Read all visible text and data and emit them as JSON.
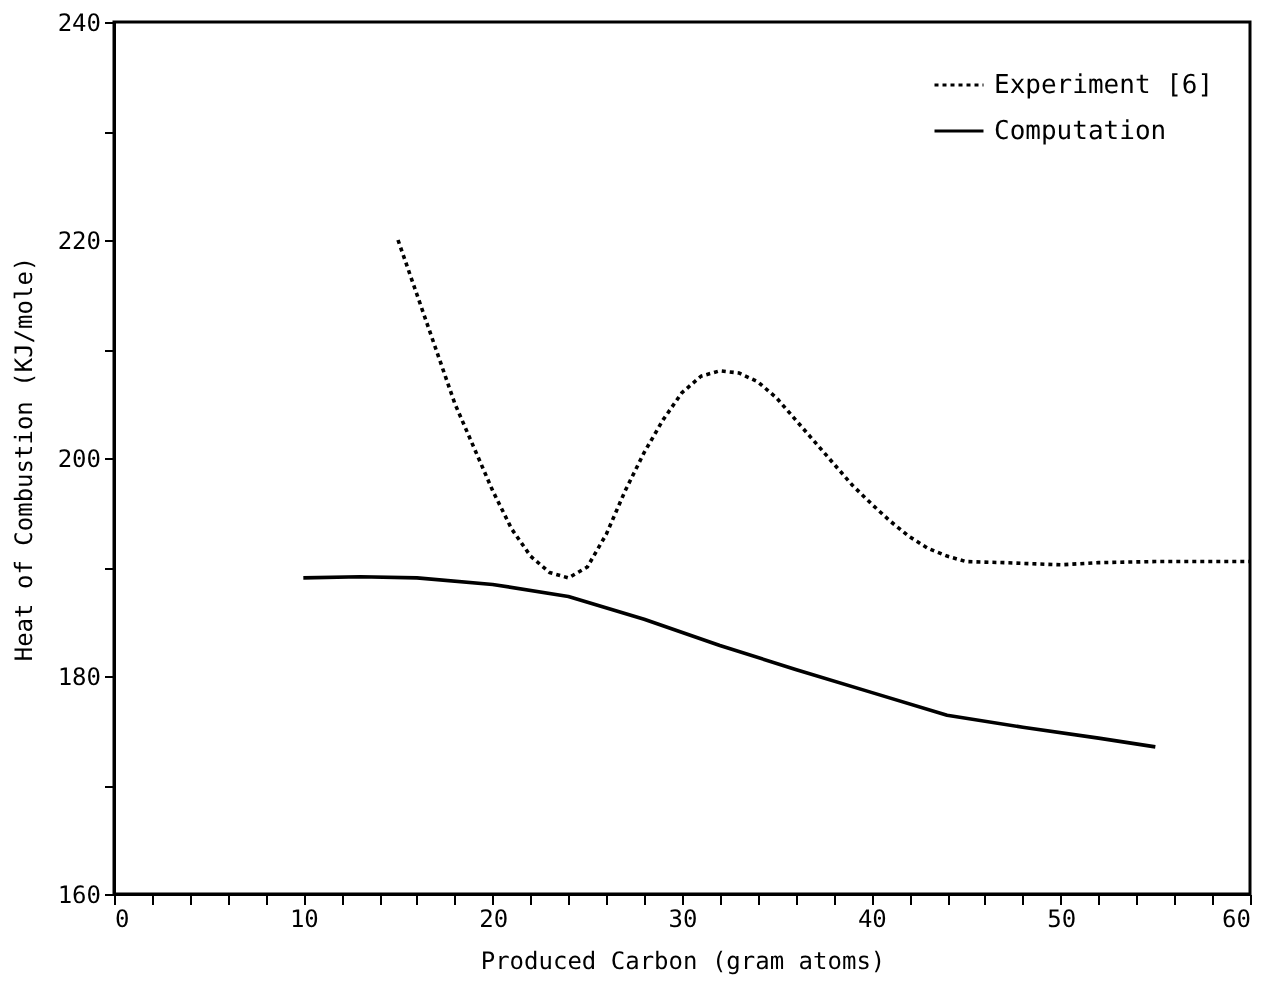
{
  "chart_data": {
    "type": "line",
    "xlabel": "Produced Carbon (gram atoms)",
    "ylabel": "Heat of Combustion (KJ/mole)",
    "xlim": [
      0,
      60
    ],
    "ylim": [
      160,
      240
    ],
    "xticks": [
      0,
      {
        "value": 2,
        "label": null
      },
      {
        "value": 4,
        "label": null
      },
      {
        "value": 6,
        "label": null
      },
      {
        "value": 8,
        "label": null
      },
      10,
      {
        "value": 12,
        "label": null
      },
      {
        "value": 14,
        "label": null
      },
      {
        "value": 16,
        "label": null
      },
      {
        "value": 18,
        "label": null
      },
      20,
      {
        "value": 22,
        "label": null
      },
      {
        "value": 24,
        "label": null
      },
      {
        "value": 26,
        "label": null
      },
      {
        "value": 28,
        "label": null
      },
      30,
      {
        "value": 32,
        "label": null
      },
      {
        "value": 34,
        "label": null
      },
      {
        "value": 36,
        "label": null
      },
      {
        "value": 38,
        "label": null
      },
      40,
      {
        "value": 42,
        "label": null
      },
      {
        "value": 44,
        "label": null
      },
      {
        "value": 46,
        "label": null
      },
      {
        "value": 48,
        "label": null
      },
      50,
      {
        "value": 52,
        "label": null
      },
      {
        "value": 54,
        "label": null
      },
      {
        "value": 56,
        "label": null
      },
      {
        "value": 58,
        "label": null
      },
      60
    ],
    "yticks": [
      160,
      {
        "value": 170,
        "label": null
      },
      180,
      {
        "value": 190,
        "label": null
      },
      200,
      {
        "value": 210,
        "label": null
      },
      220,
      {
        "value": 230,
        "label": null
      },
      240
    ],
    "grid": false,
    "legend": "top right",
    "marker": "none",
    "series": [
      {
        "name": "Experiment [6]",
        "color": "#000000",
        "line_style": "dotted",
        "x": [
          15,
          16,
          17,
          18,
          19,
          20,
          21,
          22,
          23,
          24,
          25,
          26,
          27,
          28,
          29,
          30,
          31,
          32,
          33,
          34,
          35,
          36,
          37,
          38,
          39,
          40,
          41,
          42,
          43,
          44,
          45,
          47,
          50,
          52,
          55,
          60
        ],
        "values": [
          220,
          215,
          210,
          205,
          201,
          197,
          193.5,
          191,
          189.5,
          189,
          190,
          193,
          197,
          200.5,
          203.5,
          206,
          207.5,
          208,
          207.8,
          207,
          205.5,
          203.5,
          201.5,
          199.5,
          197.5,
          195.8,
          194.2,
          192.8,
          191.7,
          191,
          190.5,
          190.4,
          190.2,
          190.4,
          190.5,
          190.5
        ]
      },
      {
        "name": "Computation",
        "color": "#000000",
        "line_style": "solid",
        "x": [
          10,
          13,
          16,
          20,
          24,
          28,
          32,
          36,
          40,
          44,
          48,
          52,
          55
        ],
        "values": [
          189,
          189.1,
          189,
          188.4,
          187.3,
          185.2,
          182.8,
          180.6,
          178.5,
          176.4,
          175.3,
          174.3,
          173.5
        ]
      }
    ]
  }
}
